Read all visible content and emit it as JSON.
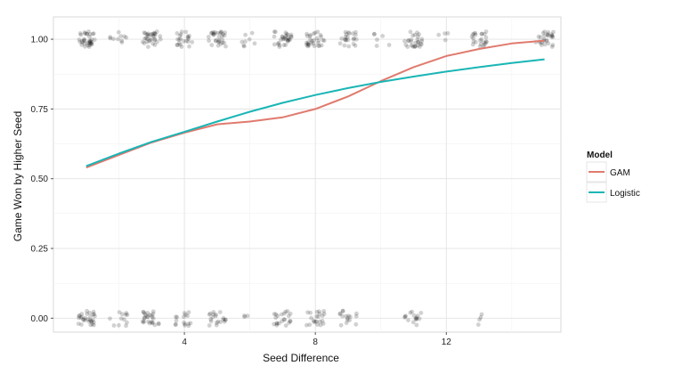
{
  "chart_data": {
    "type": "line",
    "xlabel": "Seed Difference",
    "ylabel": "Game Won by Higher Seed",
    "xlim": [
      0,
      15.5
    ],
    "ylim": [
      -0.05,
      1.08
    ],
    "x_ticks": [
      4,
      8,
      12
    ],
    "x_tick_labels": [
      "4",
      "8",
      "12"
    ],
    "y_ticks": [
      0,
      0.25,
      0.5,
      0.75,
      1
    ],
    "y_tick_labels": [
      "0.00",
      "0.25",
      "0.50",
      "0.75",
      "1.00"
    ],
    "grid": true,
    "legend": {
      "title": "Model",
      "position": "right",
      "entries": [
        "GAM",
        "Logistic"
      ]
    },
    "series": [
      {
        "name": "GAM",
        "color": "#e07a6e",
        "x": [
          1,
          2,
          3,
          4,
          5,
          6,
          7,
          8,
          9,
          10,
          11,
          12,
          13,
          14,
          15
        ],
        "values": [
          0.54,
          0.585,
          0.63,
          0.665,
          0.695,
          0.705,
          0.72,
          0.75,
          0.795,
          0.85,
          0.9,
          0.94,
          0.965,
          0.985,
          0.995
        ]
      },
      {
        "name": "Logistic",
        "color": "#1ab5b5",
        "x": [
          1,
          2,
          3,
          4,
          5,
          6,
          7,
          8,
          9,
          10,
          11,
          12,
          13,
          14,
          15
        ],
        "values": [
          0.545,
          0.59,
          0.632,
          0.668,
          0.705,
          0.74,
          0.772,
          0.8,
          0.825,
          0.847,
          0.866,
          0.884,
          0.9,
          0.915,
          0.928
        ]
      }
    ],
    "points": {
      "color": "#000000",
      "opacity": 0.18,
      "groups": [
        {
          "x": 1,
          "y": 1,
          "count": 36
        },
        {
          "x": 2,
          "y": 1,
          "count": 10
        },
        {
          "x": 3,
          "y": 1,
          "count": 32
        },
        {
          "x": 4,
          "y": 1,
          "count": 22
        },
        {
          "x": 5,
          "y": 1,
          "count": 30
        },
        {
          "x": 6,
          "y": 1,
          "count": 8
        },
        {
          "x": 7,
          "y": 1,
          "count": 30
        },
        {
          "x": 8,
          "y": 1,
          "count": 30
        },
        {
          "x": 9,
          "y": 1,
          "count": 22
        },
        {
          "x": 10,
          "y": 1,
          "count": 6
        },
        {
          "x": 11,
          "y": 1,
          "count": 28
        },
        {
          "x": 12,
          "y": 1,
          "count": 4
        },
        {
          "x": 13,
          "y": 1,
          "count": 24
        },
        {
          "x": 15,
          "y": 1,
          "count": 28
        },
        {
          "x": 1,
          "y": 0,
          "count": 30
        },
        {
          "x": 2,
          "y": 0,
          "count": 12
        },
        {
          "x": 3,
          "y": 0,
          "count": 26
        },
        {
          "x": 4,
          "y": 0,
          "count": 16
        },
        {
          "x": 5,
          "y": 0,
          "count": 20
        },
        {
          "x": 6,
          "y": 0,
          "count": 3
        },
        {
          "x": 7,
          "y": 0,
          "count": 22
        },
        {
          "x": 8,
          "y": 0,
          "count": 22
        },
        {
          "x": 9,
          "y": 0,
          "count": 16
        },
        {
          "x": 11,
          "y": 0,
          "count": 16
        },
        {
          "x": 13,
          "y": 0,
          "count": 4
        }
      ]
    }
  }
}
